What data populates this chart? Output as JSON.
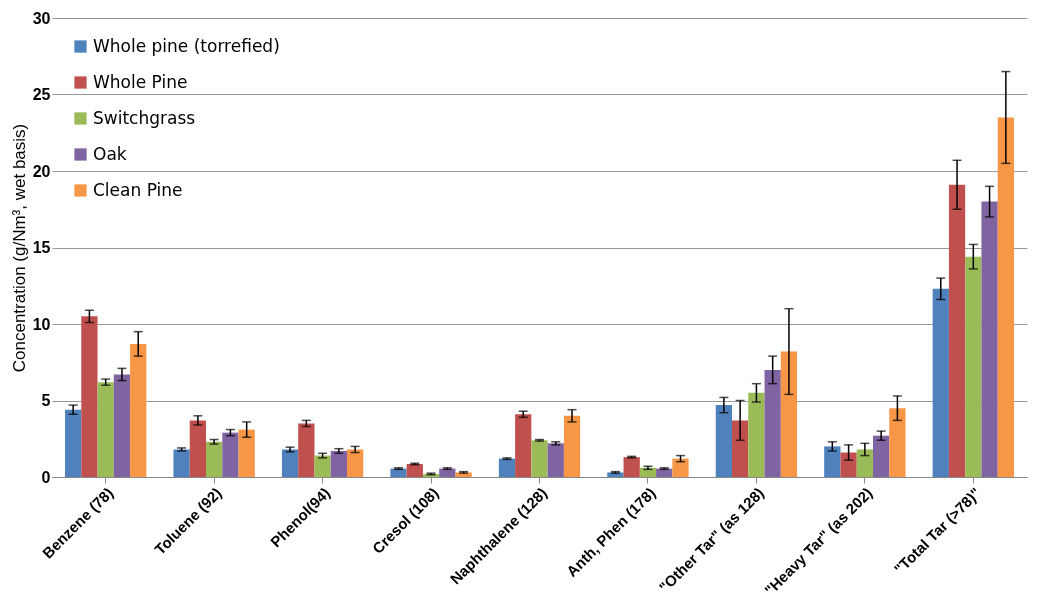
{
  "chart_data": {
    "type": "bar",
    "ylabel": "Concentration (g/Nm³, wet basis)",
    "categories": [
      "Benzene (78)",
      "Toluene (92)",
      "Phenol(94)",
      "Cresol (108)",
      "Naphthalene (128)",
      "Anth, Phen (178)",
      "\"Other Tar\" (as 128)",
      "\"Heavy Tar\" (as 202)",
      "\"Total Tar (>78)\""
    ],
    "series": [
      {
        "name": "Whole pine (torrefied)",
        "color": "#4f81bd",
        "values": [
          4.4,
          1.8,
          1.8,
          0.55,
          1.2,
          0.3,
          4.7,
          2.0,
          12.3
        ],
        "errors": [
          0.3,
          0.1,
          0.15,
          0.05,
          0.05,
          0.05,
          0.5,
          0.3,
          0.7
        ]
      },
      {
        "name": "Whole Pine",
        "color": "#c0504d",
        "values": [
          10.5,
          3.7,
          3.5,
          0.85,
          4.1,
          1.3,
          3.7,
          1.6,
          19.1
        ],
        "errors": [
          0.4,
          0.3,
          0.2,
          0.05,
          0.2,
          0.05,
          1.3,
          0.5,
          1.6
        ]
      },
      {
        "name": "Switchgrass",
        "color": "#9bbb59",
        "values": [
          6.2,
          2.3,
          1.4,
          0.2,
          2.4,
          0.6,
          5.5,
          1.8,
          14.4
        ],
        "errors": [
          0.2,
          0.15,
          0.15,
          0.05,
          0.05,
          0.1,
          0.6,
          0.4,
          0.8
        ]
      },
      {
        "name": "Oak",
        "color": "#8064a2",
        "values": [
          6.7,
          2.9,
          1.7,
          0.55,
          2.2,
          0.55,
          7.0,
          2.7,
          18.0
        ],
        "errors": [
          0.4,
          0.2,
          0.15,
          0.05,
          0.1,
          0.05,
          0.9,
          0.3,
          1.0
        ]
      },
      {
        "name": "Clean Pine",
        "color": "#f79646",
        "values": [
          8.7,
          3.1,
          1.8,
          0.3,
          4.0,
          1.2,
          8.2,
          4.5,
          23.5
        ],
        "errors": [
          0.8,
          0.5,
          0.2,
          0.05,
          0.4,
          0.2,
          2.8,
          0.8,
          3.0
        ]
      }
    ],
    "ylim": [
      0,
      30
    ],
    "yticks": [
      0,
      5,
      10,
      15,
      20,
      25,
      30
    ],
    "grid": "y",
    "legend": "top left"
  }
}
